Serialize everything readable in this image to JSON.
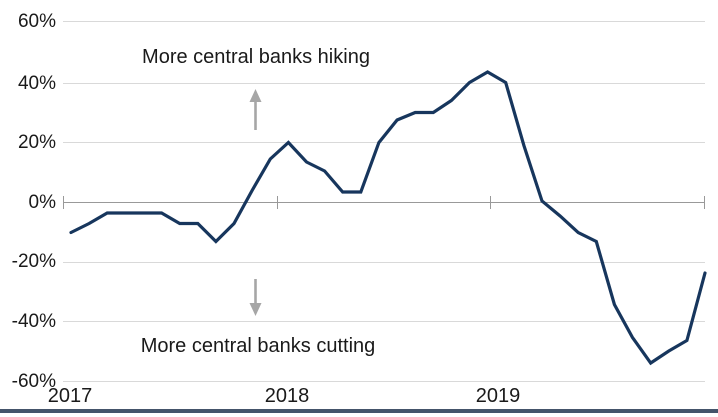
{
  "chart_data": {
    "type": "line",
    "title": "",
    "xlabel": "",
    "ylabel": "",
    "categories": [
      "Jan 2017",
      "Feb 2017",
      "Mar 2017",
      "Apr 2017",
      "May 2017",
      "Jun 2017",
      "Jul 2017",
      "Aug 2017",
      "Sep 2017",
      "Oct 2017",
      "Nov 2017",
      "Dec 2017",
      "Jan 2018",
      "Feb 2018",
      "Mar 2018",
      "Apr 2018",
      "May 2018",
      "Jun 2018",
      "Jul 2018",
      "Aug 2018",
      "Sep 2018",
      "Oct 2018",
      "Nov 2018",
      "Dec 2018",
      "Jan 2019",
      "Feb 2019",
      "Mar 2019",
      "Apr 2019",
      "May 2019",
      "Jun 2019",
      "Jul 2019",
      "Aug 2019",
      "Sep 2019",
      "Oct 2019",
      "Nov 2019",
      "Dec 2019"
    ],
    "values": [
      -10,
      -7,
      -3.5,
      -3.5,
      -3.5,
      -3.5,
      -7,
      -7,
      -13,
      -7,
      4,
      14.5,
      20,
      13.5,
      10.5,
      3.5,
      3.5,
      20,
      27.5,
      30,
      30,
      34,
      40,
      43.5,
      40,
      19,
      0.5,
      -4.5,
      -10,
      -13,
      -34,
      -45,
      -53.5,
      -49.5,
      -46,
      -23.5
    ],
    "ylim": [
      -60,
      60
    ],
    "y_tick_labels": [
      "60%",
      "40%",
      "20%",
      "0%",
      "-20%",
      "-40%",
      "-60%"
    ],
    "x_tick_labels": [
      "2017",
      "2018",
      "2019"
    ],
    "grid": true,
    "legend": "none",
    "annotations": [
      {
        "text": "More central banks hiking",
        "direction": "up"
      },
      {
        "text": "More central banks cutting",
        "direction": "down"
      }
    ]
  },
  "colors": {
    "line": "#17365d",
    "gridline": "#d9d9d9",
    "zero_axis": "#999999",
    "arrow": "#a6a6a6",
    "text": "#1a1a1a",
    "bottom_bar": "#44546a"
  }
}
